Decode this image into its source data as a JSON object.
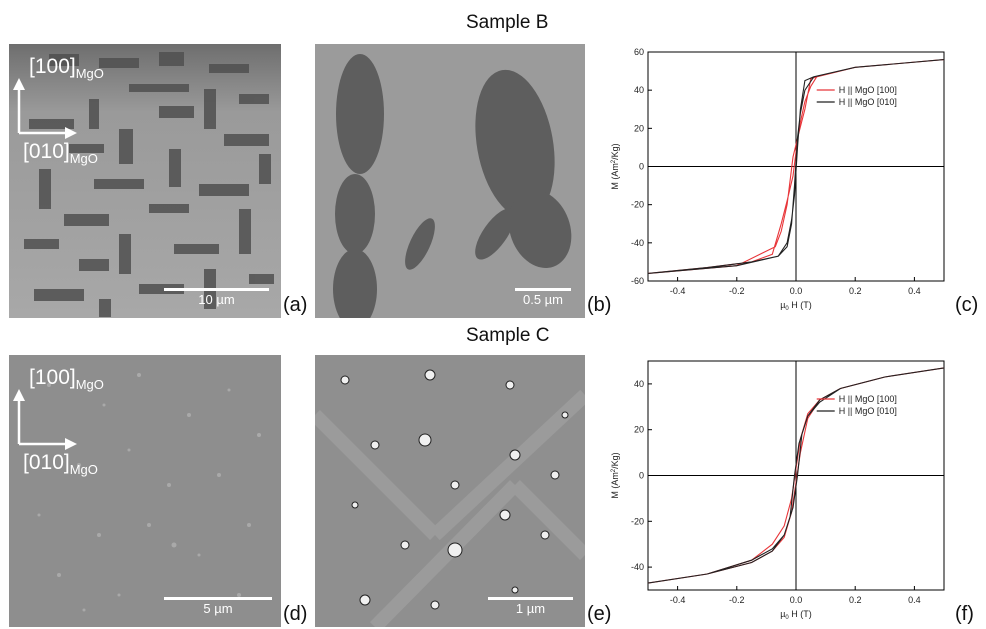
{
  "sample_b_title": "Sample B",
  "sample_c_title": "Sample C",
  "panel_labels": {
    "a": "(a)",
    "b": "(b)",
    "c": "(c)",
    "d": "(d)",
    "e": "(e)",
    "f": "(f)"
  },
  "orientation": {
    "y_axis": "[100]",
    "x_axis": "[010]",
    "subscript": "MgO"
  },
  "scalebars": {
    "a": "10 µm",
    "b": "0.5 µm",
    "d": "5 µm",
    "e": "1 µm"
  },
  "colors": {
    "series_100": "#e8363a",
    "series_010": "#222222"
  },
  "chart_data": [
    {
      "type": "line",
      "panel": "(c)",
      "xlabel_main": "µ",
      "xlabel_sub": "0",
      "xlabel_tail": " H (T)",
      "ylabel_main": "M (Am",
      "ylabel_sup": "2",
      "ylabel_tail": "/Kg)",
      "xlim": [
        -0.5,
        0.5
      ],
      "ylim": [
        -60,
        60
      ],
      "xticks": [
        -0.4,
        -0.2,
        0.0,
        0.2,
        0.4
      ],
      "xtick_labels": [
        "-0.4",
        "-0.2",
        "0.0",
        "0.2",
        "0.4"
      ],
      "yticks": [
        -60,
        -40,
        -20,
        0,
        20,
        40,
        60
      ],
      "ytick_labels": [
        "-60",
        "-40",
        "-20",
        "0",
        "20",
        "40",
        "60"
      ],
      "legend_position": "top-right",
      "series": [
        {
          "name": "H || MgO [100]",
          "x": [
            -0.5,
            -0.3,
            -0.15,
            -0.08,
            -0.05,
            -0.03,
            -0.01,
            0.01,
            0.03,
            0.05,
            0.07,
            0.2,
            0.5,
            0.2,
            0.07,
            0.05,
            0.03,
            0.01,
            -0.01,
            -0.03,
            -0.05,
            -0.07,
            -0.2,
            -0.5
          ],
          "y": [
            -56,
            -53,
            -50,
            -46,
            -30,
            -18,
            -5,
            20,
            34,
            42,
            47,
            52,
            56,
            52,
            47,
            46,
            30,
            18,
            5,
            -20,
            -34,
            -42,
            -52,
            -56
          ]
        },
        {
          "name": "H || MgO [010]",
          "x": [
            -0.5,
            -0.3,
            -0.15,
            -0.06,
            -0.03,
            -0.015,
            -0.005,
            0.005,
            0.015,
            0.03,
            0.06,
            0.2,
            0.5,
            0.2,
            0.06,
            0.03,
            0.015,
            0.005,
            -0.005,
            -0.015,
            -0.03,
            -0.06,
            -0.2,
            -0.5
          ],
          "y": [
            -56,
            -53,
            -50,
            -47,
            -42,
            -30,
            -10,
            15,
            28,
            40,
            47,
            52,
            56,
            52,
            47,
            45,
            30,
            10,
            -15,
            -28,
            -40,
            -47,
            -52,
            -56
          ]
        }
      ]
    },
    {
      "type": "line",
      "panel": "(f)",
      "xlabel_main": "µ",
      "xlabel_sub": "0",
      "xlabel_tail": " H (T)",
      "ylabel_main": "M (Am",
      "ylabel_sup": "2",
      "ylabel_tail": "/Kg)",
      "xlim": [
        -0.5,
        0.5
      ],
      "ylim": [
        -50,
        50
      ],
      "xticks": [
        -0.4,
        -0.2,
        0.0,
        0.2,
        0.4
      ],
      "xtick_labels": [
        "-0.4",
        "-0.2",
        "0.0",
        "0.2",
        "0.4"
      ],
      "yticks": [
        -40,
        -20,
        0,
        20,
        40
      ],
      "ytick_labels": [
        "-40",
        "-20",
        "0",
        "20",
        "40"
      ],
      "legend_position": "top-right",
      "series": [
        {
          "name": "H || MgO [100]",
          "x": [
            -0.5,
            -0.3,
            -0.15,
            -0.08,
            -0.04,
            -0.015,
            0.0,
            0.015,
            0.04,
            0.08,
            0.15,
            0.3,
            0.5,
            0.3,
            0.15,
            0.08,
            0.04,
            0.015,
            0.0,
            -0.015,
            -0.04,
            -0.08,
            -0.15,
            -0.3,
            -0.5
          ],
          "y": [
            -47,
            -43,
            -37,
            -30,
            -22,
            -10,
            3,
            16,
            27,
            33,
            38,
            43,
            47,
            43,
            38,
            33,
            25,
            10,
            -3,
            -16,
            -27,
            -33,
            -38,
            -43,
            -47
          ]
        },
        {
          "name": "H || MgO [010]",
          "x": [
            -0.5,
            -0.3,
            -0.15,
            -0.08,
            -0.04,
            -0.02,
            -0.005,
            0.01,
            0.04,
            0.08,
            0.15,
            0.3,
            0.5,
            0.3,
            0.15,
            0.08,
            0.04,
            0.02,
            0.005,
            -0.01,
            -0.04,
            -0.08,
            -0.15,
            -0.3,
            -0.5
          ],
          "y": [
            -47,
            -43,
            -37,
            -32,
            -26,
            -18,
            0,
            14,
            26,
            33,
            38,
            43,
            47,
            43,
            38,
            32,
            26,
            18,
            0,
            -14,
            -26,
            -33,
            -38,
            -43,
            -47
          ]
        }
      ]
    }
  ]
}
